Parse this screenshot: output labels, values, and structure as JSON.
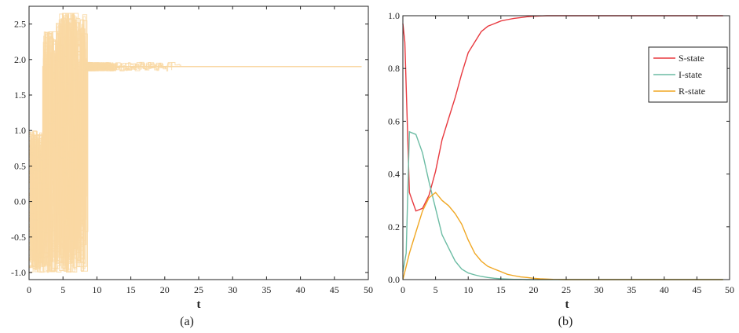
{
  "chart_data": [
    {
      "type": "line",
      "caption": "(a)",
      "xlabel": "t",
      "ylabel": "",
      "xlim": [
        0,
        50
      ],
      "ylim": [
        -1.1,
        2.75
      ],
      "x_ticks": [
        0,
        5,
        10,
        15,
        20,
        25,
        30,
        35,
        40,
        45,
        50
      ],
      "y_ticks": [
        -1.0,
        -0.5,
        0.0,
        0.5,
        1.0,
        1.5,
        2.0,
        2.5
      ],
      "color": "#f9d8a3",
      "converged_value": 1.9,
      "x_end": 49,
      "description_series": "many overlapping step trajectories starting in [-1,1], oscillating up to ~2.7 for t<8 and converging to ~1.9 by t~12-24"
    },
    {
      "type": "line",
      "caption": "(b)",
      "xlabel": "t",
      "ylabel": "",
      "xlim": [
        0,
        50
      ],
      "ylim": [
        0,
        1.0
      ],
      "x_ticks": [
        0,
        5,
        10,
        15,
        20,
        25,
        30,
        35,
        40,
        45,
        50
      ],
      "y_ticks": [
        0.0,
        0.2,
        0.4,
        0.6,
        0.8,
        1.0
      ],
      "legend_position": "top-right",
      "series": [
        {
          "name": "S-state",
          "color": "#e8393f",
          "x": [
            0,
            0.3,
            1,
            2,
            3,
            4,
            5,
            6,
            7,
            8,
            9,
            10,
            11,
            12,
            13,
            14,
            15,
            16,
            17,
            18,
            19,
            20,
            21,
            22,
            23,
            25,
            30,
            35,
            40,
            45,
            49
          ],
          "y": [
            0.97,
            0.9,
            0.33,
            0.26,
            0.27,
            0.32,
            0.41,
            0.53,
            0.61,
            0.69,
            0.78,
            0.86,
            0.9,
            0.94,
            0.96,
            0.97,
            0.98,
            0.985,
            0.99,
            0.993,
            0.996,
            0.998,
            0.999,
            1.0,
            1.0,
            1.0,
            1.0,
            1.0,
            1.0,
            1.0,
            1.0
          ]
        },
        {
          "name": "I-state",
          "color": "#6cbca4",
          "x": [
            0,
            0.5,
            1,
            2,
            3,
            4,
            5,
            6,
            7,
            8,
            9,
            10,
            11,
            12,
            13,
            14,
            15,
            16,
            17,
            18,
            19,
            20,
            21,
            22,
            25,
            30,
            35,
            40,
            45,
            49
          ],
          "y": [
            0.03,
            0.1,
            0.56,
            0.55,
            0.48,
            0.37,
            0.27,
            0.17,
            0.12,
            0.07,
            0.04,
            0.025,
            0.018,
            0.012,
            0.008,
            0.005,
            0.003,
            0.002,
            0.001,
            0.001,
            0.0,
            0.0,
            0.0,
            0.0,
            0.0,
            0.0,
            0.0,
            0.0,
            0.0,
            0.0
          ]
        },
        {
          "name": "R-state",
          "color": "#f0a723",
          "x": [
            0,
            0.5,
            1,
            2,
            3,
            4,
            5,
            6,
            7,
            8,
            9,
            10,
            11,
            12,
            13,
            14,
            15,
            16,
            17,
            18,
            19,
            20,
            21,
            22,
            23,
            25,
            30,
            35,
            40,
            45,
            49
          ],
          "y": [
            0.0,
            0.05,
            0.1,
            0.18,
            0.26,
            0.31,
            0.33,
            0.3,
            0.28,
            0.25,
            0.21,
            0.15,
            0.1,
            0.07,
            0.05,
            0.04,
            0.03,
            0.02,
            0.015,
            0.01,
            0.008,
            0.005,
            0.003,
            0.002,
            0.001,
            0.0,
            0.0,
            0.0,
            0.0,
            0.0,
            0.0
          ]
        }
      ]
    }
  ]
}
